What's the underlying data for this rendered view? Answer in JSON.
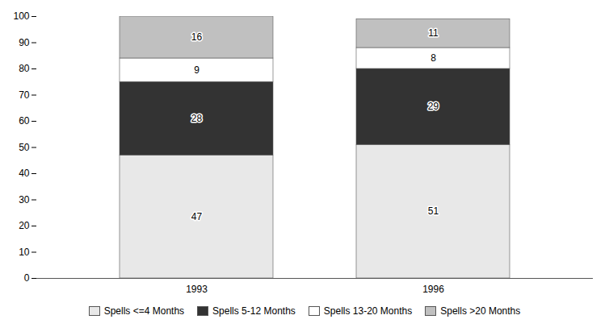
{
  "chart_data": {
    "type": "bar",
    "stacked": true,
    "categories": [
      "1993",
      "1996"
    ],
    "series": [
      {
        "name": "Spells <=4 Months",
        "color": "#e8e8e8",
        "values": [
          47,
          51
        ]
      },
      {
        "name": "Spells 5-12 Months",
        "color": "#333333",
        "values": [
          28,
          29
        ]
      },
      {
        "name": "Spells 13-20 Months",
        "color": "#ffffff",
        "values": [
          9,
          8
        ]
      },
      {
        "name": "Spells >20 Months",
        "color": "#c0c0c0",
        "values": [
          16,
          11
        ]
      }
    ],
    "ylim": [
      0,
      100
    ],
    "yticks": [
      0,
      10,
      20,
      30,
      40,
      50,
      60,
      70,
      80,
      90,
      100
    ],
    "grid": false,
    "data_labels": true,
    "legend": "bottom"
  }
}
